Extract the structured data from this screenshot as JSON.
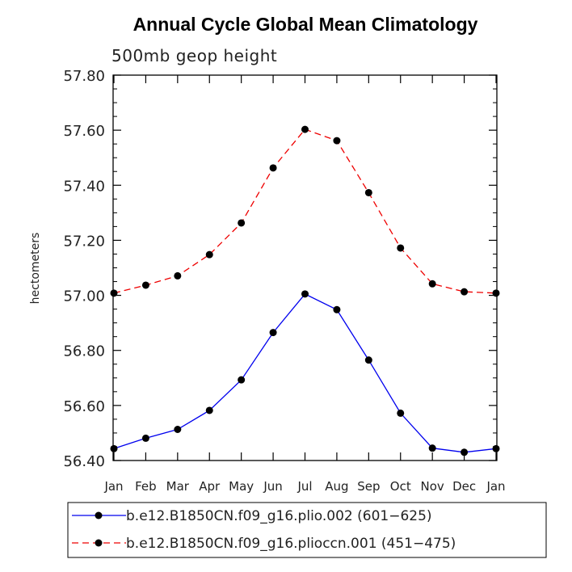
{
  "chart_data": {
    "type": "line",
    "title": "Annual Cycle Global Mean Climatology",
    "subtitle": "500mb geop height",
    "ylabel": "hectometers",
    "xlabel": "",
    "categories": [
      "Jan",
      "Feb",
      "Mar",
      "Apr",
      "May",
      "Jun",
      "Jul",
      "Aug",
      "Sep",
      "Oct",
      "Nov",
      "Dec",
      "Jan"
    ],
    "ylim": [
      56.4,
      57.8
    ],
    "yticks": [
      "57.80",
      "57.60",
      "57.40",
      "57.20",
      "57.00",
      "56.80",
      "56.60",
      "56.40"
    ],
    "ytick_values": [
      57.8,
      57.6,
      57.4,
      57.2,
      57.0,
      56.8,
      56.6,
      56.4
    ],
    "series": [
      {
        "name": "b.e12.B1850CN.f09_g16.plio.002 (601−625)",
        "color": "#0000ee",
        "dash": "solid",
        "values": [
          56.443,
          56.481,
          56.513,
          56.582,
          56.693,
          56.865,
          57.005,
          56.948,
          56.765,
          56.572,
          56.445,
          56.43,
          56.443
        ]
      },
      {
        "name": "b.e12.B1850CN.f09_g16.pliocсn.001 (451−475)",
        "color": "#ee0000",
        "dash": "dashed",
        "values": [
          57.008,
          57.037,
          57.071,
          57.148,
          57.263,
          57.463,
          57.603,
          57.562,
          57.373,
          57.172,
          57.042,
          57.013,
          57.008
        ]
      }
    ],
    "legend_position": "bottom"
  }
}
